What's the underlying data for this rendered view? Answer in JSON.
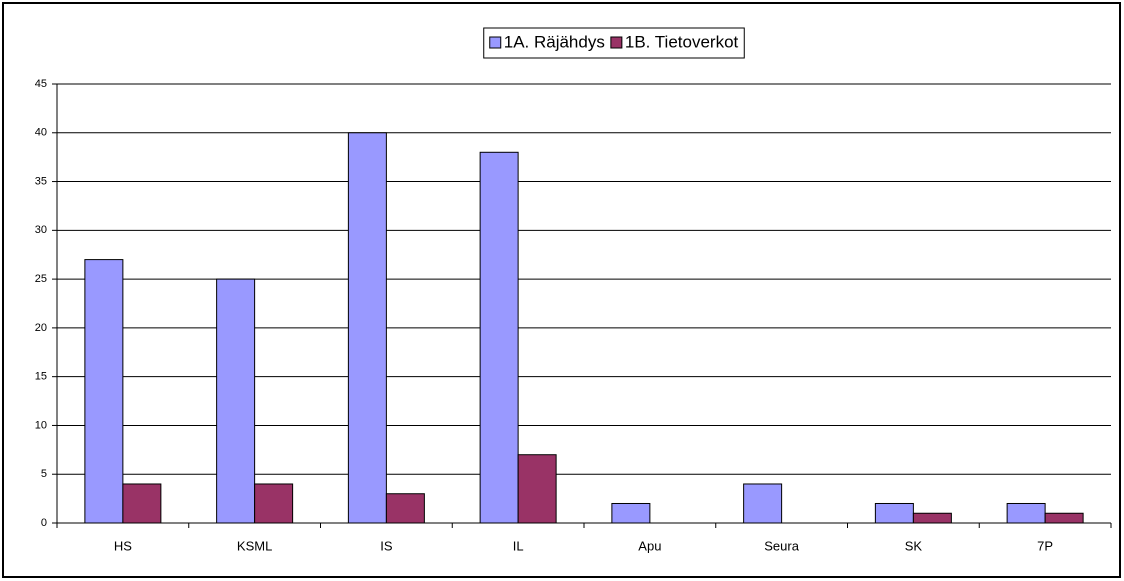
{
  "chart_data": {
    "type": "bar",
    "categories": [
      "HS",
      "KSML",
      "IS",
      "IL",
      "Apu",
      "Seura",
      "SK",
      "7P"
    ],
    "series": [
      {
        "name": "1A. Räjähdys",
        "color": "#9999ff",
        "values": [
          27,
          25,
          40,
          38,
          2,
          4,
          2,
          2
        ]
      },
      {
        "name": "1B. Tietoverkot",
        "color": "#993366",
        "values": [
          4,
          4,
          3,
          7,
          0,
          0,
          1,
          1
        ]
      }
    ],
    "ylim": [
      0,
      45
    ],
    "yticks": [
      0,
      5,
      10,
      15,
      20,
      25,
      30,
      35,
      40,
      45
    ],
    "grid": true,
    "legend": "top"
  }
}
